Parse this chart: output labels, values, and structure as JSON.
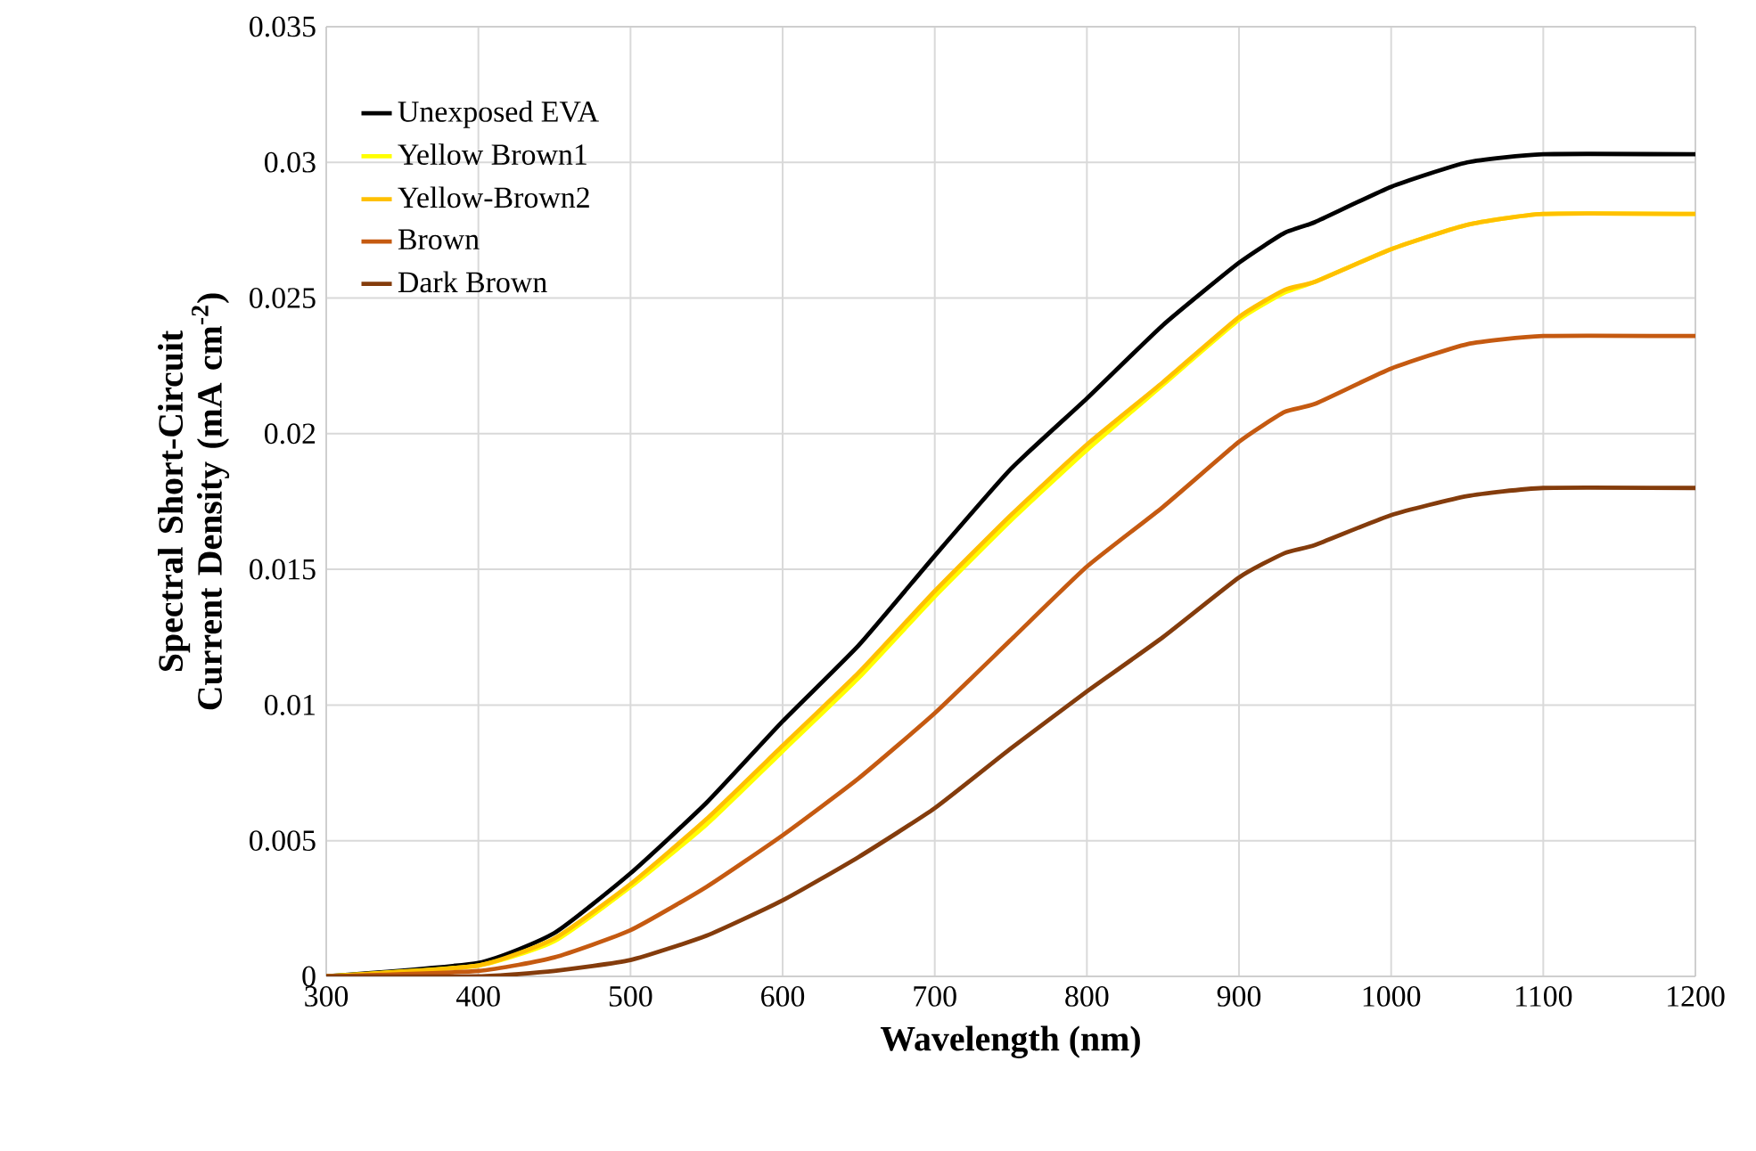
{
  "chart_data": {
    "type": "line",
    "xlabel": "Wavelength (nm)",
    "ylabel": "Spectral Short-Circuit Current Density  (mA cm$^{-2}$)",
    "x": [
      300,
      400,
      450,
      500,
      550,
      600,
      650,
      700,
      750,
      800,
      850,
      900,
      930,
      950,
      1000,
      1050,
      1100,
      1200
    ],
    "series": [
      {
        "name": "Unexposed EVA",
        "color": "#000000",
        "values": [
          0,
          0.0005,
          0.0016,
          0.0038,
          0.0064,
          0.0094,
          0.0122,
          0.0155,
          0.0187,
          0.0213,
          0.024,
          0.0263,
          0.0274,
          0.0278,
          0.0291,
          0.03,
          0.0303,
          0.0303
        ]
      },
      {
        "name": "Yellow Brown1",
        "color": "#ffff00",
        "values": [
          0,
          0.0004,
          0.0013,
          0.0033,
          0.0056,
          0.0083,
          0.011,
          0.014,
          0.0168,
          0.0194,
          0.0218,
          0.0242,
          0.0252,
          0.0256,
          0.0268,
          0.0277,
          0.0281,
          0.0281
        ]
      },
      {
        "name": "Yellow-Brown2",
        "color": "#ffc000",
        "values": [
          0,
          0.0004,
          0.0014,
          0.0034,
          0.0058,
          0.0085,
          0.0112,
          0.0142,
          0.017,
          0.0196,
          0.0219,
          0.0243,
          0.0253,
          0.0256,
          0.0268,
          0.0277,
          0.0281,
          0.0281
        ]
      },
      {
        "name": "Brown",
        "color": "#c55a11",
        "values": [
          0,
          0.0002,
          0.0007,
          0.0017,
          0.0033,
          0.0052,
          0.0073,
          0.0097,
          0.0124,
          0.0151,
          0.0173,
          0.0197,
          0.0208,
          0.0211,
          0.0224,
          0.0233,
          0.0236,
          0.0236
        ]
      },
      {
        "name": "Dark Brown",
        "color": "#843c0c",
        "values": [
          0,
          0,
          0.0002,
          0.0006,
          0.0015,
          0.0028,
          0.0044,
          0.0062,
          0.0084,
          0.0105,
          0.0125,
          0.0147,
          0.0156,
          0.0159,
          0.017,
          0.0177,
          0.018,
          0.018
        ]
      }
    ],
    "xlim": [
      300,
      1200
    ],
    "xticks": [
      300,
      400,
      500,
      600,
      700,
      800,
      900,
      1000,
      1100,
      1200
    ],
    "ylim": [
      0,
      0.035
    ],
    "yticks": [
      0,
      0.005,
      0.01,
      0.015,
      0.02,
      0.025,
      0.03,
      0.035
    ],
    "grid": true,
    "legend": "top left",
    "marker": "none",
    "line_style": "solid"
  }
}
